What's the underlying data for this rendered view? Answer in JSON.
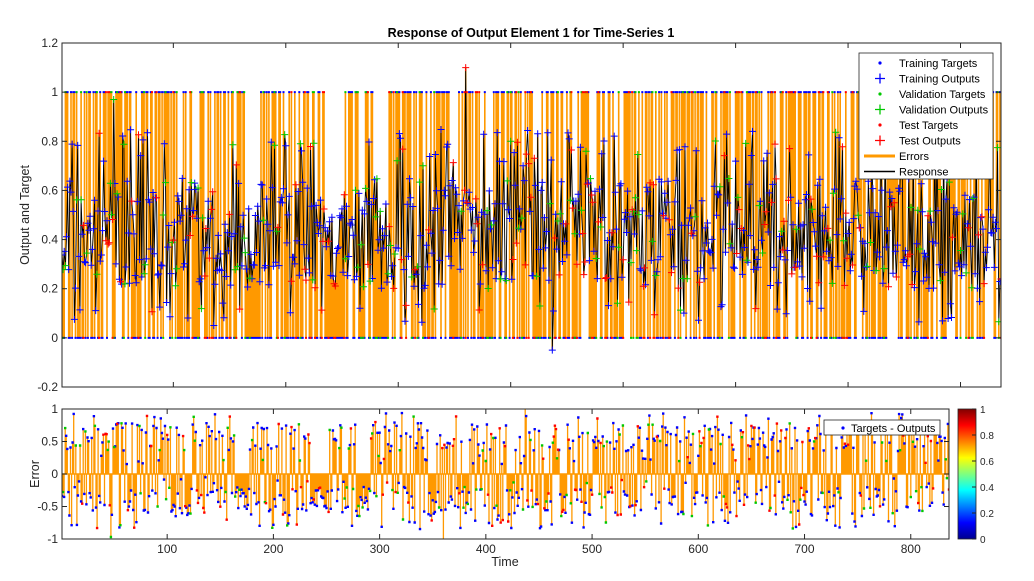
{
  "chart_data": [
    {
      "type": "line",
      "title": "Response of Output Element 1 for Time-Series 1",
      "xlabel": "",
      "ylabel": "Output and Target",
      "xlim": [
        1,
        836
      ],
      "ylim": [
        -0.2,
        1.2
      ],
      "yticks": [
        -0.2,
        0,
        0.2,
        0.4,
        0.6,
        0.8,
        1,
        1.2
      ],
      "ytick_labels": [
        "-0.2",
        "0",
        "0.2",
        "0.4",
        "0.6",
        "0.8",
        "1",
        "1.2"
      ],
      "grid": false,
      "legend_position": "top-right",
      "legend": [
        {
          "name": "Training Targets",
          "marker": "dot",
          "color": "#0000ff"
        },
        {
          "name": "Training Outputs",
          "marker": "plus",
          "color": "#0000ff"
        },
        {
          "name": "Validation Targets",
          "marker": "dot",
          "color": "#00c800"
        },
        {
          "name": "Validation Outputs",
          "marker": "plus",
          "color": "#00c800"
        },
        {
          "name": "Test Targets",
          "marker": "dot",
          "color": "#ff0000"
        },
        {
          "name": "Test Outputs",
          "marker": "plus",
          "color": "#ff0000"
        },
        {
          "name": "Errors",
          "marker": "line",
          "color": "#ff9900"
        },
        {
          "name": "Response",
          "marker": "line",
          "color": "#000000"
        }
      ],
      "notes_series": {
        "targets": "binary 0/1 values at each time step",
        "outputs": "mostly between 0.15 and 0.8, with peaks near 1.1 around time 360 and minimum near -0.05 around time 437"
      }
    },
    {
      "type": "line",
      "title": "",
      "xlabel": "Time",
      "ylabel": "Error",
      "xlim": [
        1,
        836
      ],
      "ylim": [
        -1,
        1
      ],
      "xticks": [
        100,
        200,
        300,
        400,
        500,
        600,
        700,
        800
      ],
      "xtick_labels": [
        "100",
        "200",
        "300",
        "400",
        "500",
        "600",
        "700",
        "800"
      ],
      "yticks": [
        -1,
        -0.5,
        0,
        0.5,
        1
      ],
      "ytick_labels": [
        "-1",
        "-0.5",
        "0",
        "0.5",
        "1"
      ],
      "grid": false,
      "legend_position": "top-right",
      "legend": [
        {
          "name": "Targets - Outputs",
          "marker": "dot",
          "color": "#0000ff"
        }
      ],
      "colorbar": {
        "colormap": "jet",
        "range": [
          0,
          1
        ],
        "ticks": [
          0,
          0.2,
          0.4,
          0.6,
          0.8,
          1
        ],
        "tick_labels": [
          "0",
          "0.2",
          "0.4",
          "0.6",
          "0.8",
          "1"
        ]
      }
    }
  ],
  "colors": {
    "errors": "#ff9900",
    "response": "#000000",
    "training": "#0000ff",
    "validation": "#00c800",
    "test": "#ff0000"
  }
}
